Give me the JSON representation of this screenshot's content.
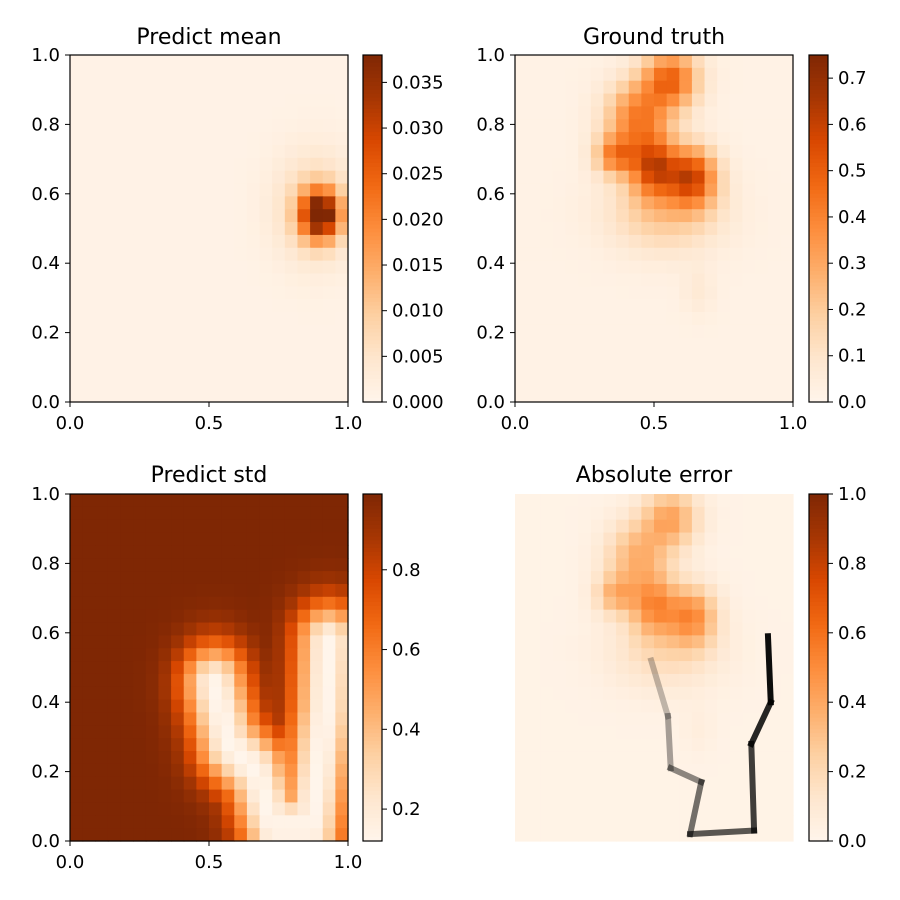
{
  "figure": {
    "background": "#ffffff"
  },
  "colormap": {
    "name": "Oranges",
    "stops": [
      "#fff5eb",
      "#fee6ce",
      "#fdd0a2",
      "#fdae6b",
      "#fd8d3c",
      "#f16913",
      "#d94801",
      "#a63603",
      "#7f2704"
    ]
  },
  "chart_data": [
    {
      "type": "heatmap",
      "title": "Predict mean",
      "xlabel": "",
      "ylabel": "",
      "xlim": [
        0,
        1
      ],
      "ylim": [
        0,
        1
      ],
      "xticks": [
        "0.0",
        "0.5",
        "1.0"
      ],
      "yticks": [
        "0.0",
        "0.2",
        "0.4",
        "0.6",
        "0.8",
        "1.0"
      ],
      "axes_visible": true,
      "colorbar": {
        "ticks": [
          "0.000",
          "0.005",
          "0.010",
          "0.015",
          "0.020",
          "0.025",
          "0.030",
          "0.035"
        ],
        "range": [
          0,
          0.038
        ]
      },
      "blobs": [
        {
          "x": 0.9,
          "y": 0.54,
          "sx": 0.05,
          "sy": 0.05,
          "amp": 0.037
        },
        {
          "x": 0.88,
          "y": 0.56,
          "sx": 0.1,
          "sy": 0.11,
          "amp": 0.008
        }
      ],
      "base": 0.0008
    },
    {
      "type": "heatmap",
      "title": "Ground truth",
      "xlabel": "",
      "ylabel": "",
      "xlim": [
        0,
        1
      ],
      "ylim": [
        0,
        1
      ],
      "xticks": [
        "0.0",
        "0.5",
        "1.0"
      ],
      "yticks": [
        "0.0",
        "0.2",
        "0.4",
        "0.6",
        "0.8",
        "1.0"
      ],
      "axes_visible": true,
      "colorbar": {
        "ticks": [
          "0.0",
          "0.1",
          "0.2",
          "0.3",
          "0.4",
          "0.5",
          "0.6",
          "0.7"
        ],
        "range": [
          0,
          0.75
        ]
      },
      "blobs": [
        {
          "x": 0.56,
          "y": 0.93,
          "sx": 0.07,
          "sy": 0.06,
          "amp": 0.45
        },
        {
          "x": 0.44,
          "y": 0.82,
          "sx": 0.08,
          "sy": 0.07,
          "amp": 0.38
        },
        {
          "x": 0.36,
          "y": 0.71,
          "sx": 0.05,
          "sy": 0.04,
          "amp": 0.35
        },
        {
          "x": 0.5,
          "y": 0.68,
          "sx": 0.06,
          "sy": 0.06,
          "amp": 0.5
        },
        {
          "x": 0.64,
          "y": 0.65,
          "sx": 0.06,
          "sy": 0.06,
          "amp": 0.5
        },
        {
          "x": 0.54,
          "y": 0.55,
          "sx": 0.14,
          "sy": 0.08,
          "amp": 0.2
        },
        {
          "x": 0.66,
          "y": 0.32,
          "sx": 0.04,
          "sy": 0.05,
          "amp": 0.05
        }
      ],
      "base": 0.02
    },
    {
      "type": "heatmap",
      "title": "Predict std",
      "xlabel": "",
      "ylabel": "",
      "xlim": [
        0,
        1
      ],
      "ylim": [
        0,
        1
      ],
      "xticks": [
        "0.0",
        "0.5",
        "1.0"
      ],
      "yticks": [
        "0.0",
        "0.2",
        "0.4",
        "0.6",
        "0.8",
        "1.0"
      ],
      "axes_visible": true,
      "colorbar": {
        "ticks": [
          "0.2",
          "0.4",
          "0.6",
          "0.8"
        ],
        "range": [
          0.12,
          0.99
        ]
      },
      "path": [
        [
          0.52,
          0.45
        ],
        [
          0.57,
          0.28
        ],
        [
          0.67,
          0.2
        ],
        [
          0.73,
          0.04
        ],
        [
          0.87,
          0.04
        ],
        [
          0.92,
          0.38
        ],
        [
          0.93,
          0.57
        ]
      ],
      "min_value": 0.12,
      "max_value": 0.99,
      "falloff": 0.085
    },
    {
      "type": "heatmap",
      "title": "Absolute error",
      "xlabel": "",
      "ylabel": "",
      "xlim": [
        0,
        1
      ],
      "ylim": [
        0,
        1
      ],
      "axes_visible": false,
      "colorbar": {
        "ticks": [
          "0.0",
          "0.2",
          "0.4",
          "0.6",
          "0.8",
          "1.0"
        ],
        "range": [
          0,
          1.0
        ]
      },
      "blobs": [
        {
          "x": 0.56,
          "y": 0.93,
          "sx": 0.07,
          "sy": 0.06,
          "amp": 0.38
        },
        {
          "x": 0.44,
          "y": 0.82,
          "sx": 0.08,
          "sy": 0.07,
          "amp": 0.33
        },
        {
          "x": 0.36,
          "y": 0.71,
          "sx": 0.05,
          "sy": 0.04,
          "amp": 0.3
        },
        {
          "x": 0.5,
          "y": 0.68,
          "sx": 0.06,
          "sy": 0.06,
          "amp": 0.43
        },
        {
          "x": 0.64,
          "y": 0.65,
          "sx": 0.06,
          "sy": 0.06,
          "amp": 0.43
        },
        {
          "x": 0.54,
          "y": 0.55,
          "sx": 0.14,
          "sy": 0.08,
          "amp": 0.17
        },
        {
          "x": 0.66,
          "y": 0.32,
          "sx": 0.04,
          "sy": 0.05,
          "amp": 0.04
        }
      ],
      "base": 0.02,
      "trajectory": {
        "color": "#000000",
        "points": [
          [
            0.49,
            0.52
          ],
          [
            0.55,
            0.36
          ],
          [
            0.56,
            0.21
          ],
          [
            0.67,
            0.17
          ],
          [
            0.63,
            0.02
          ],
          [
            0.86,
            0.03
          ],
          [
            0.85,
            0.28
          ],
          [
            0.92,
            0.4
          ],
          [
            0.91,
            0.59
          ]
        ]
      }
    }
  ]
}
